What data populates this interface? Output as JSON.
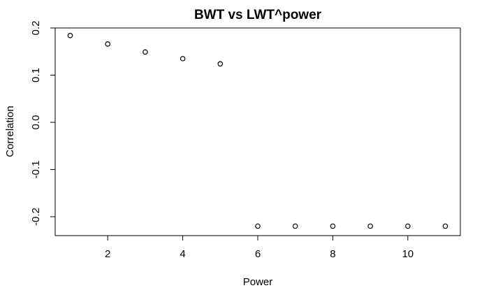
{
  "chart_data": {
    "type": "scatter",
    "title": "BWT vs LWT^power",
    "xlabel": "Power",
    "ylabel": "Correlation",
    "xlim": [
      0.6,
      11.4
    ],
    "ylim": [
      -0.24,
      0.2
    ],
    "x_ticks": [
      2,
      4,
      6,
      8,
      10
    ],
    "y_ticks": [
      -0.2,
      -0.1,
      0.0,
      0.1,
      0.2
    ],
    "x_tick_labels": [
      "2",
      "4",
      "6",
      "8",
      "10"
    ],
    "y_tick_labels": [
      "-0.2",
      "-0.1",
      "0.0",
      "0.1",
      "0.2"
    ],
    "grid": false,
    "marker": "open-circle",
    "x": [
      1,
      2,
      3,
      4,
      5,
      6,
      7,
      8,
      9,
      10,
      11
    ],
    "y": [
      0.184,
      0.166,
      0.149,
      0.135,
      0.124,
      -0.22,
      -0.22,
      -0.22,
      -0.22,
      -0.22,
      -0.22
    ]
  }
}
